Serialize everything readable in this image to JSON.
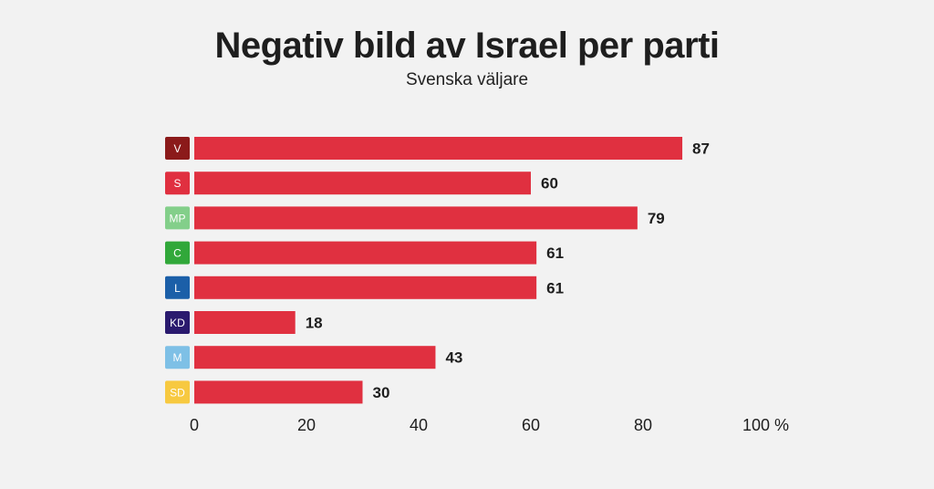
{
  "title": "Negativ bild av Israel per parti",
  "subtitle": "Svenska väljare",
  "colors": {
    "background": "#f2f2f2",
    "bar": "#e03040"
  },
  "chart_data": {
    "type": "bar",
    "orientation": "horizontal",
    "title": "Negativ bild av Israel per parti",
    "subtitle": "Svenska väljare",
    "categories": [
      "V",
      "S",
      "MP",
      "C",
      "L",
      "KD",
      "M",
      "SD"
    ],
    "values": [
      87,
      60,
      79,
      61,
      61,
      18,
      43,
      30
    ],
    "category_colors": [
      "#8b1a1a",
      "#e03040",
      "#83cf8a",
      "#31a83a",
      "#1b5fa8",
      "#2a1a6e",
      "#7ec0e6",
      "#f7c940"
    ],
    "xlim": [
      0,
      100
    ],
    "xticks": [
      0,
      20,
      40,
      60,
      80,
      100
    ],
    "xtick_labels": [
      "0",
      "20",
      "40",
      "60",
      "80",
      "100 %"
    ],
    "grid": false
  }
}
